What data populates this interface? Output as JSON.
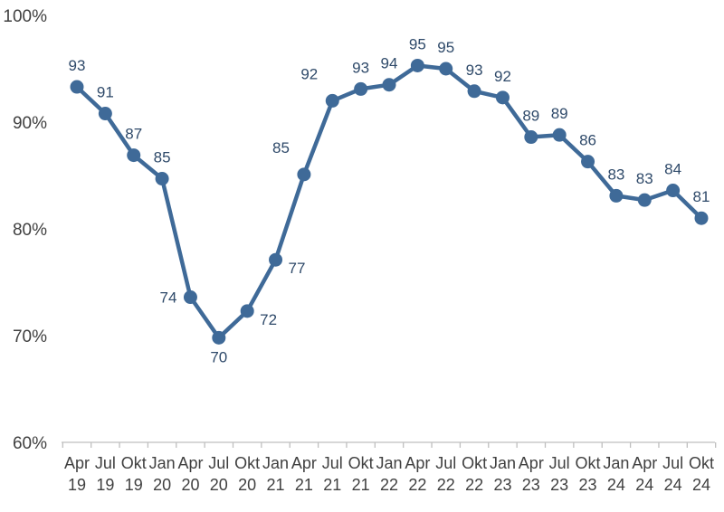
{
  "chart_data": {
    "type": "line",
    "title": "",
    "xlabel": "",
    "ylabel": "",
    "ylim": [
      60,
      100
    ],
    "yticks": [
      "60%",
      "70%",
      "80%",
      "90%",
      "100%"
    ],
    "grid": false,
    "legend": "none",
    "color": "#3f6a98",
    "categories": [
      [
        "Apr",
        "19"
      ],
      [
        "Jul",
        "19"
      ],
      [
        "Okt",
        "19"
      ],
      [
        "Jan",
        "20"
      ],
      [
        "Apr",
        "20"
      ],
      [
        "Jul",
        "20"
      ],
      [
        "Okt",
        "20"
      ],
      [
        "Jan",
        "21"
      ],
      [
        "Apr",
        "21"
      ],
      [
        "Jul",
        "21"
      ],
      [
        "Okt",
        "21"
      ],
      [
        "Jan",
        "22"
      ],
      [
        "Apr",
        "22"
      ],
      [
        "Jul",
        "22"
      ],
      [
        "Okt",
        "22"
      ],
      [
        "Jan",
        "23"
      ],
      [
        "Apr",
        "23"
      ],
      [
        "Jul",
        "23"
      ],
      [
        "Okt",
        "23"
      ],
      [
        "Jan",
        "24"
      ],
      [
        "Apr",
        "24"
      ],
      [
        "Jul",
        "24"
      ],
      [
        "Okt",
        "24"
      ]
    ],
    "values": [
      93.3,
      90.8,
      86.9,
      84.7,
      73.6,
      69.8,
      72.3,
      77.1,
      85.1,
      92.0,
      93.1,
      93.5,
      95.3,
      95.0,
      92.9,
      92.3,
      88.6,
      88.8,
      86.3,
      83.1,
      82.7,
      83.6,
      81.0
    ],
    "data_labels": [
      "93",
      "91",
      "87",
      "85",
      "74",
      "70",
      "72",
      "77",
      "85",
      "92",
      "93",
      "94",
      "95",
      "95",
      "93",
      "92",
      "89",
      "89",
      "86",
      "83",
      "83",
      "84",
      "81"
    ]
  }
}
